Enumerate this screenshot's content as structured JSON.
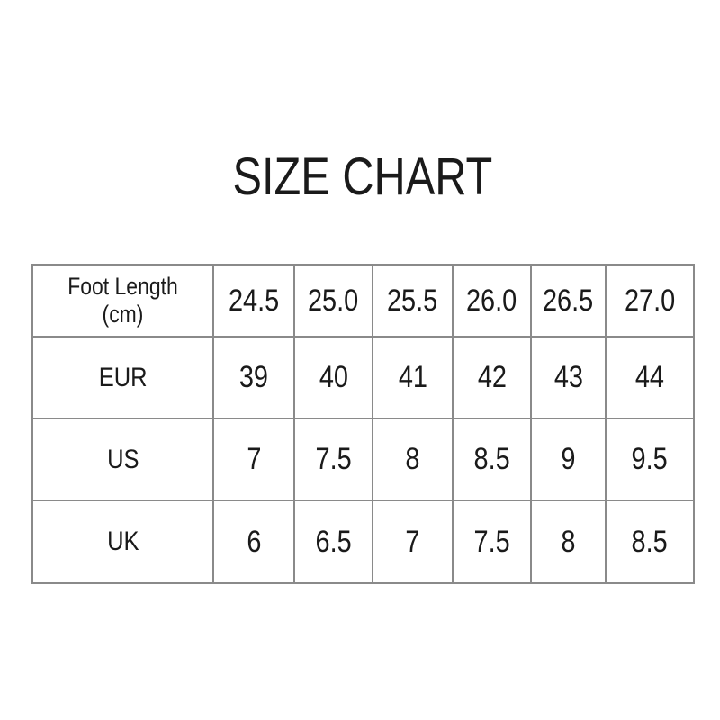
{
  "header": {
    "title": "SIZE CHART"
  },
  "table": {
    "rows": [
      [
        "Foot Length (cm)",
        "24.5",
        "25.0",
        "25.5",
        "26.0",
        "26.5",
        "27.0"
      ],
      [
        "EUR",
        "39",
        "40",
        "41",
        "42",
        "43",
        "44"
      ],
      [
        "US",
        "7",
        "7.5",
        "8",
        "8.5",
        "9",
        "9.5"
      ],
      [
        "UK",
        "6",
        "6.5",
        "7",
        "7.5",
        "8",
        "8.5"
      ]
    ]
  }
}
